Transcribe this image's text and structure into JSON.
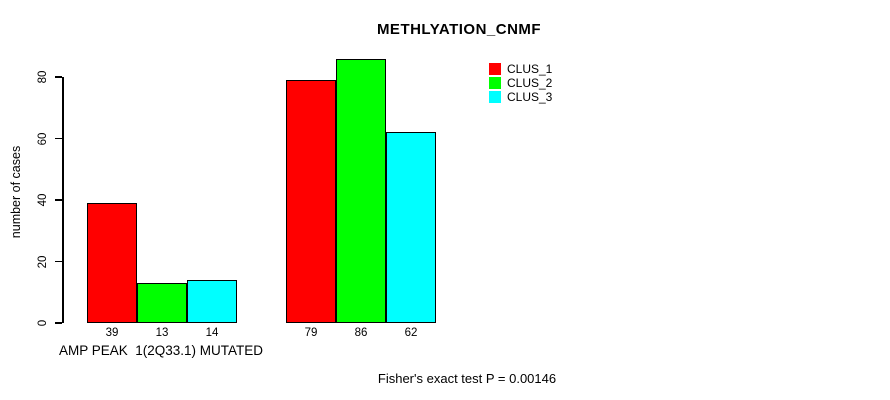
{
  "title": "METHLYATION_CNMF",
  "ylabel": "number of cases",
  "group_label": "AMP PEAK  1(2Q33.1) MUTATED",
  "footer": "Fisher's exact test P = 0.00146",
  "legend": {
    "items": [
      {
        "label": "CLUS_1",
        "color": "#ff0000"
      },
      {
        "label": "CLUS_2",
        "color": "#00ff00"
      },
      {
        "label": "CLUS_3",
        "color": "#00ffff"
      }
    ]
  },
  "chart_data": {
    "type": "bar",
    "title": "METHLYATION_CNMF",
    "xlabel": "AMP PEAK  1(2Q33.1) MUTATED",
    "ylabel": "number of cases",
    "categories": [
      "AMP PEAK  1(2Q33.1) MUTATED",
      ""
    ],
    "series": [
      {
        "name": "CLUS_1",
        "color": "#ff0000",
        "values": [
          39,
          79
        ]
      },
      {
        "name": "CLUS_2",
        "color": "#00ff00",
        "values": [
          13,
          86
        ]
      },
      {
        "name": "CLUS_3",
        "color": "#00ffff",
        "values": [
          14,
          62
        ]
      }
    ],
    "bar_value_labels": [
      [
        39,
        13,
        14
      ],
      [
        79,
        86,
        62
      ]
    ],
    "yticks": [
      0,
      20,
      40,
      60,
      80
    ],
    "ylim": [
      0,
      86
    ],
    "grid": false,
    "legend_position": "top-right",
    "annotation": "Fisher's exact test P = 0.00146",
    "bar_border_color": "#000000",
    "background_color": "#ffffff"
  }
}
